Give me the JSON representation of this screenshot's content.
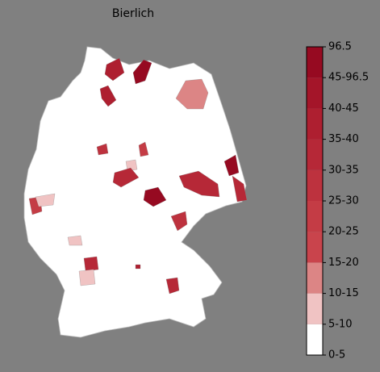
{
  "title": "Bierlich",
  "legend": {
    "labels": [
      "0-5",
      "5-10",
      "10-15",
      "15-20",
      "20-25",
      "25-30",
      "30-35",
      "35-40",
      "40-45",
      "45-96.5",
      "96.5"
    ],
    "colors": [
      "#ffffff",
      "#f0c3c3",
      "#dc8585",
      "#c9444c",
      "#c43c45",
      "#bd323e",
      "#b62837",
      "#ae1f30",
      "#a41529",
      "#960a21"
    ]
  }
}
